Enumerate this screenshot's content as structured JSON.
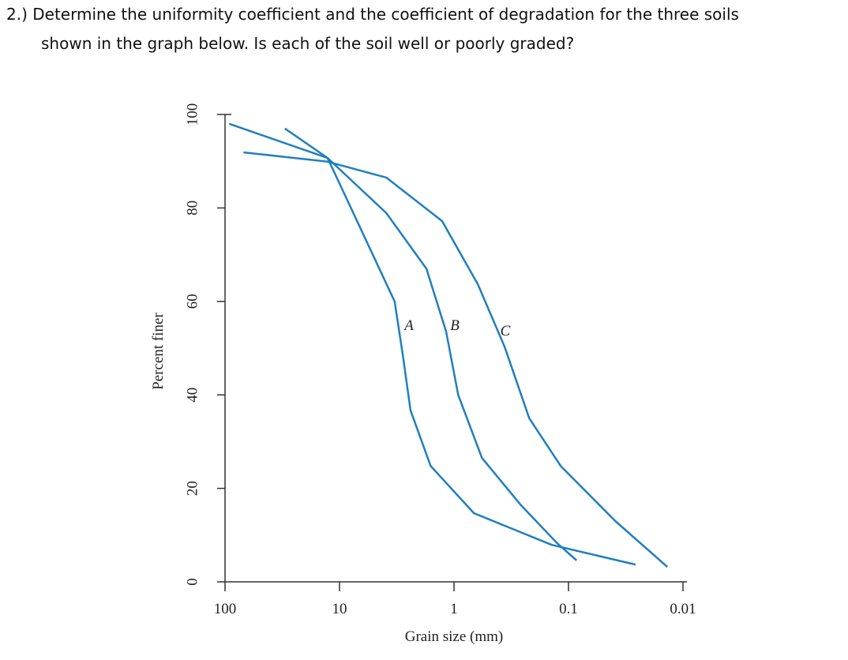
{
  "question": {
    "lines": [
      "2.) Determine the uniformity coefficient and the coefficient of degradation for the three soils",
      "shown in the graph below. Is each of the soil well or poorly graded?"
    ]
  },
  "chart_data": {
    "type": "line",
    "x_label": "Grain size (mm)",
    "y_label": "Percent finer",
    "log_x": true,
    "xlim": [
      100,
      0.01
    ],
    "xticks": [
      100,
      10,
      1,
      0.1,
      0.01
    ],
    "ylim": [
      0,
      100
    ],
    "yticks": [
      0,
      20,
      40,
      60,
      80,
      100
    ],
    "series": [
      {
        "name": "A",
        "color": "#1f7fc0",
        "x": [
          92,
          12.7,
          3.3,
          2.8,
          2.4,
          1.6,
          0.67,
          0.14,
          0.026
        ],
        "values": [
          98,
          90.7,
          60,
          48.5,
          36.7,
          24.8,
          14.7,
          7.9,
          3.7
        ]
      },
      {
        "name": "B",
        "color": "#1f7fc0",
        "x": [
          30,
          12.7,
          3.9,
          1.74,
          1.17,
          0.92,
          0.57,
          0.26,
          0.127,
          0.085
        ],
        "values": [
          97,
          90.7,
          78.9,
          67,
          53.5,
          40,
          26.5,
          16.4,
          8.4,
          4.6
        ]
      },
      {
        "name": "C",
        "color": "#1f7fc0",
        "x": [
          69,
          12.7,
          3.9,
          1.27,
          0.62,
          0.36,
          0.22,
          0.117,
          0.039,
          0.0137
        ],
        "values": [
          91.9,
          89.9,
          86.5,
          77.2,
          63.7,
          50.2,
          35,
          24.8,
          13,
          3.2
        ]
      }
    ]
  }
}
